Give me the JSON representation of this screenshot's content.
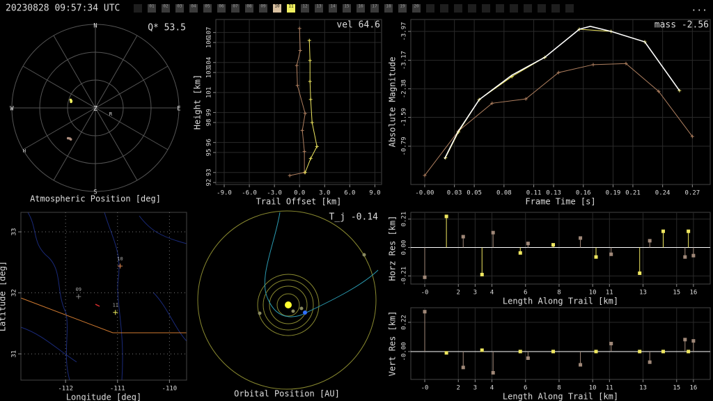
{
  "header": {
    "timestamp": "20230828 09:57:34 UTC",
    "menu": "...",
    "stations": [
      {
        "label": "01",
        "color": "#3a3a3a"
      },
      {
        "label": "02",
        "color": "#3a3a3a"
      },
      {
        "label": "03",
        "color": "#3a3a3a"
      },
      {
        "label": "04",
        "color": "#3a3a3a"
      },
      {
        "label": "05",
        "color": "#3a3a3a"
      },
      {
        "label": "06",
        "color": "#3a3a3a"
      },
      {
        "label": "07",
        "color": "#3a3a3a"
      },
      {
        "label": "08",
        "color": "#3a3a3a"
      },
      {
        "label": "09",
        "color": "#3a3a3a"
      },
      {
        "label": "10",
        "color": "#d8c0a0"
      },
      {
        "label": "11",
        "color": "#f0f060"
      },
      {
        "label": "12",
        "color": "#3a3a3a"
      },
      {
        "label": "13",
        "color": "#3a3a3a"
      },
      {
        "label": "14",
        "color": "#3a3a3a"
      },
      {
        "label": "15",
        "color": "#3a3a3a"
      },
      {
        "label": "16",
        "color": "#3a3a3a"
      },
      {
        "label": "17",
        "color": "#3a3a3a"
      },
      {
        "label": "18",
        "color": "#3a3a3a"
      },
      {
        "label": "19",
        "color": "#3a3a3a"
      },
      {
        "label": "20",
        "color": "#3a3a3a"
      }
    ]
  },
  "chart_data": [
    {
      "type": "polar",
      "annotation": "Q* 53.5",
      "xlabel": "Atmospheric Position [deg]",
      "directions": [
        "N",
        "E",
        "S",
        "W"
      ],
      "zenith": "Z",
      "stations": [
        "R",
        "H"
      ],
      "series": [
        {
          "color": "#f0f060",
          "az": [
            284,
            286,
            288
          ],
          "values": [
            63,
            63,
            62
          ]
        },
        {
          "color": "#b09080",
          "az": [
            218,
            220,
            222
          ],
          "values": [
            47,
            47,
            46
          ]
        }
      ]
    },
    {
      "type": "line",
      "annotation": "vel 64.6",
      "xlabel": "Trail Offset [km]",
      "ylabel": "Height [km]",
      "grid": true,
      "xlim": [
        -10,
        9.8
      ],
      "ylim": [
        91.8,
        108.3
      ],
      "xticks": [
        {
          "value": -9,
          "label": "-9.0"
        },
        {
          "value": -6,
          "label": "-6.0"
        },
        {
          "value": -3,
          "label": "-3.0"
        },
        {
          "value": 0,
          "label": "0.0"
        },
        {
          "value": 3,
          "label": "3.0"
        },
        {
          "value": 6,
          "label": "6.0"
        },
        {
          "value": 9,
          "label": "9.0"
        }
      ],
      "yticks": [
        92,
        93,
        95,
        96,
        98,
        99,
        101,
        103,
        104,
        106,
        107
      ],
      "series": [
        {
          "color": "#b08060",
          "marker": "+",
          "x": [
            0,
            0.08,
            -0.33,
            -0.25,
            0.67,
            0.33,
            0.58,
            0.58,
            -1.17
          ],
          "values": [
            107.4,
            105.2,
            103.7,
            101.7,
            98.9,
            97.2,
            95.1,
            93.0,
            92.7
          ]
        },
        {
          "color": "#f0e860",
          "marker": "+",
          "x": [
            1.17,
            1.25,
            1.25,
            1.33,
            1.5,
            2.08,
            1.33,
            0.67
          ],
          "values": [
            106.2,
            104.2,
            102.1,
            100.3,
            98.0,
            95.6,
            94.4,
            93.0
          ]
        }
      ]
    },
    {
      "type": "line",
      "annotation": "mass -2.56",
      "xlabel": "Frame Time [s]",
      "ylabel": "Absolute Magnitude",
      "grid": true,
      "xlim": [
        -0.014,
        0.288
      ],
      "ylim": [
        0.27,
        -4.3
      ],
      "xticks": [
        {
          "value": 0,
          "label": "-0.00"
        },
        0.03,
        0.05,
        0.08,
        0.11,
        0.13,
        0.16,
        0.19,
        0.21,
        0.24,
        0.27
      ],
      "yticks": [
        -3.97,
        -3.17,
        -2.38,
        -1.59,
        -0.79
      ],
      "series": [
        {
          "color": "#b08060",
          "marker": "+",
          "x": [
            0,
            0.034,
            0.068,
            0.102,
            0.135,
            0.17,
            0.203,
            0.236,
            0.27
          ],
          "values": [
            0.02,
            -1.21,
            -1.98,
            -2.1,
            -2.83,
            -3.05,
            -3.08,
            -2.31,
            -1.06
          ]
        },
        {
          "color": "#f0e860",
          "marker": "+",
          "x": [
            0.021,
            0.034,
            0.055,
            0.088,
            0.121,
            0.156,
            0.188,
            0.222,
            0.257
          ],
          "values": [
            -0.47,
            -1.18,
            -2.08,
            -2.72,
            -3.25,
            -4.03,
            -3.97,
            -3.68,
            -2.33
          ]
        },
        {
          "color": "#ffffff",
          "x": [
            0.02,
            0.034,
            0.055,
            0.088,
            0.121,
            0.156,
            0.167,
            0.188,
            0.222,
            0.257
          ],
          "values": [
            -0.44,
            -1.21,
            -2.08,
            -2.76,
            -3.25,
            -4.03,
            -4.11,
            -3.97,
            -3.68,
            -2.33
          ]
        }
      ]
    },
    {
      "type": "map",
      "xlabel": "Longitude [deg]",
      "ylabel": "Latitude [deg]",
      "grid": true,
      "xlim": [
        -112.86,
        -109.67
      ],
      "ylim": [
        30.57,
        33.32
      ],
      "xticks": [
        -112,
        -111,
        -110
      ],
      "yticks": [
        31,
        32,
        33
      ],
      "stations": {
        "names": [
          "10",
          "09",
          "11"
        ],
        "lon": [
          -110.95,
          -111.75,
          -111.04
        ],
        "lat": [
          32.44,
          31.94,
          31.68
        ],
        "colors": [
          "#e08850",
          "#888888",
          "#f0f060"
        ]
      }
    },
    {
      "type": "orbit",
      "annotation": "T_j -0.14",
      "xlabel": "Orbital Position [AU]"
    },
    {
      "type": "stem",
      "xlabel": "Length Along Trail [km]",
      "ylabel": "Horz Res [km]",
      "grid": true,
      "xlim": [
        -0.83,
        17.0
      ],
      "ylim": [
        -0.27,
        0.26
      ],
      "xticks": [
        {
          "value": 0,
          "label": "-0"
        },
        2,
        3,
        4,
        6,
        8,
        10,
        11,
        13,
        15,
        16
      ],
      "yticks": [
        -0.21,
        {
          "value": 0,
          "label": "0.00"
        },
        0.21
      ],
      "series": [
        {
          "color": "#a08878",
          "x": [
            0,
            2.29,
            4.07,
            6.15,
            9.27,
            11.1,
            13.4,
            15.5,
            16.0
          ],
          "values": [
            -0.22,
            0.08,
            0.11,
            0.03,
            0.07,
            -0.05,
            0.05,
            -0.07,
            -0.06
          ]
        },
        {
          "color": "#f0e860",
          "x": [
            1.29,
            3.41,
            5.69,
            7.65,
            10.2,
            12.8,
            14.2,
            15.7
          ],
          "values": [
            0.23,
            -0.2,
            -0.04,
            0.02,
            -0.07,
            -0.19,
            0.12,
            0.12
          ]
        }
      ]
    },
    {
      "type": "stem",
      "xlabel": "Length Along Trail [km]",
      "ylabel": "Vert Res [km]",
      "grid": true,
      "xlim": [
        -0.83,
        17.0
      ],
      "ylim": [
        -0.21,
        0.33
      ],
      "xticks": [
        {
          "value": 0,
          "label": "-0"
        },
        2,
        3,
        4,
        6,
        8,
        10,
        11,
        13,
        15,
        16
      ],
      "yticks": [
        {
          "value": 0,
          "label": "-0.00"
        },
        0.22
      ],
      "series": [
        {
          "color": "#a08878",
          "x": [
            0,
            2.29,
            4.07,
            6.15,
            9.27,
            11.1,
            13.4,
            15.5,
            16.0
          ],
          "values": [
            0.3,
            -0.12,
            -0.16,
            -0.05,
            -0.1,
            0.06,
            -0.08,
            0.09,
            0.08
          ]
        },
        {
          "color": "#f0e860",
          "x": [
            1.29,
            3.41,
            5.69,
            7.65,
            10.2,
            12.8,
            14.2,
            15.7
          ],
          "values": [
            -0.01,
            0.01,
            0,
            0,
            0,
            0,
            0,
            0
          ]
        }
      ]
    }
  ]
}
